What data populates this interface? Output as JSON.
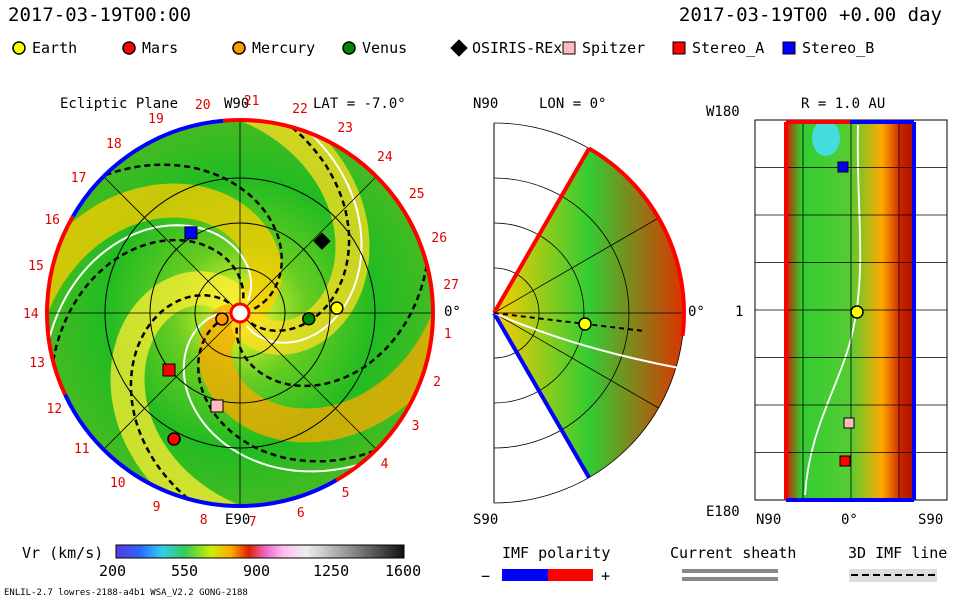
{
  "header": {
    "left_datetime": "2017-03-19T00:00",
    "right_datetime": "2017-03-19T00 +0.00 day"
  },
  "legend": [
    {
      "name": "Earth",
      "shape": "circle",
      "color": "#ffff00"
    },
    {
      "name": "Mars",
      "shape": "circle",
      "color": "#ff0000"
    },
    {
      "name": "Mercury",
      "shape": "circle",
      "color": "#ff9900"
    },
    {
      "name": "Venus",
      "shape": "circle",
      "color": "#008800"
    },
    {
      "name": "OSIRIS-REx",
      "shape": "diamond",
      "color": "#000000"
    },
    {
      "name": "Spitzer",
      "shape": "square",
      "color": "#ffbbbb"
    },
    {
      "name": "Stereo_A",
      "shape": "square",
      "color": "#ff0000"
    },
    {
      "name": "Stereo_B",
      "shape": "square",
      "color": "#0000ff"
    }
  ],
  "panels": {
    "ecliptic": {
      "title": "Ecliptic Plane",
      "top_label": "W90",
      "lat_label": "LAT = -7.0°",
      "right_label": "0°",
      "bottom_label": "E90",
      "carrington_numbers": [
        "1",
        "2",
        "3",
        "4",
        "5",
        "6",
        "7",
        "8",
        "9",
        "10",
        "11",
        "12",
        "13",
        "14",
        "15",
        "16",
        "17",
        "18",
        "19",
        "20",
        "21",
        "22",
        "23",
        "24",
        "25",
        "26",
        "27"
      ]
    },
    "meridional": {
      "top_left_label": "N90",
      "lon_label": "LON = 0°",
      "right_label": "0°",
      "bottom_label": "S90"
    },
    "radial": {
      "r_label": "R = 1.0 AU",
      "top_label": "W180",
      "middle_label": "1",
      "bottom_left_label": "E180",
      "bottom_labels": [
        "N90",
        "0°",
        "S90"
      ]
    }
  },
  "colorbar": {
    "label": "Vr (km/s)",
    "ticks": [
      "200",
      "550",
      "900",
      "1250",
      "1600"
    ]
  },
  "imf_polarity": {
    "title": "IMF polarity",
    "minus": "−",
    "plus": "+",
    "neg_color": "#0000ff",
    "pos_color": "#ff0000"
  },
  "current_sheath": {
    "title": "Current sheath"
  },
  "imf_line": {
    "title": "3D IMF line"
  },
  "footer": {
    "model_info": "ENLIL-2.7 lowres-2188-a4b1 WSA_V2.2 GONG-2188"
  },
  "chart_data": {
    "type": "heatmap",
    "quantity": "Vr (km/s)",
    "color_range": [
      200,
      1600
    ],
    "bodies_ecliptic": [
      {
        "name": "Earth"
      },
      {
        "name": "Mars"
      },
      {
        "name": "Mercury"
      },
      {
        "name": "Venus"
      },
      {
        "name": "OSIRIS-REx"
      },
      {
        "name": "Spitzer"
      },
      {
        "name": "Stereo_A"
      },
      {
        "name": "Stereo_B"
      }
    ]
  }
}
